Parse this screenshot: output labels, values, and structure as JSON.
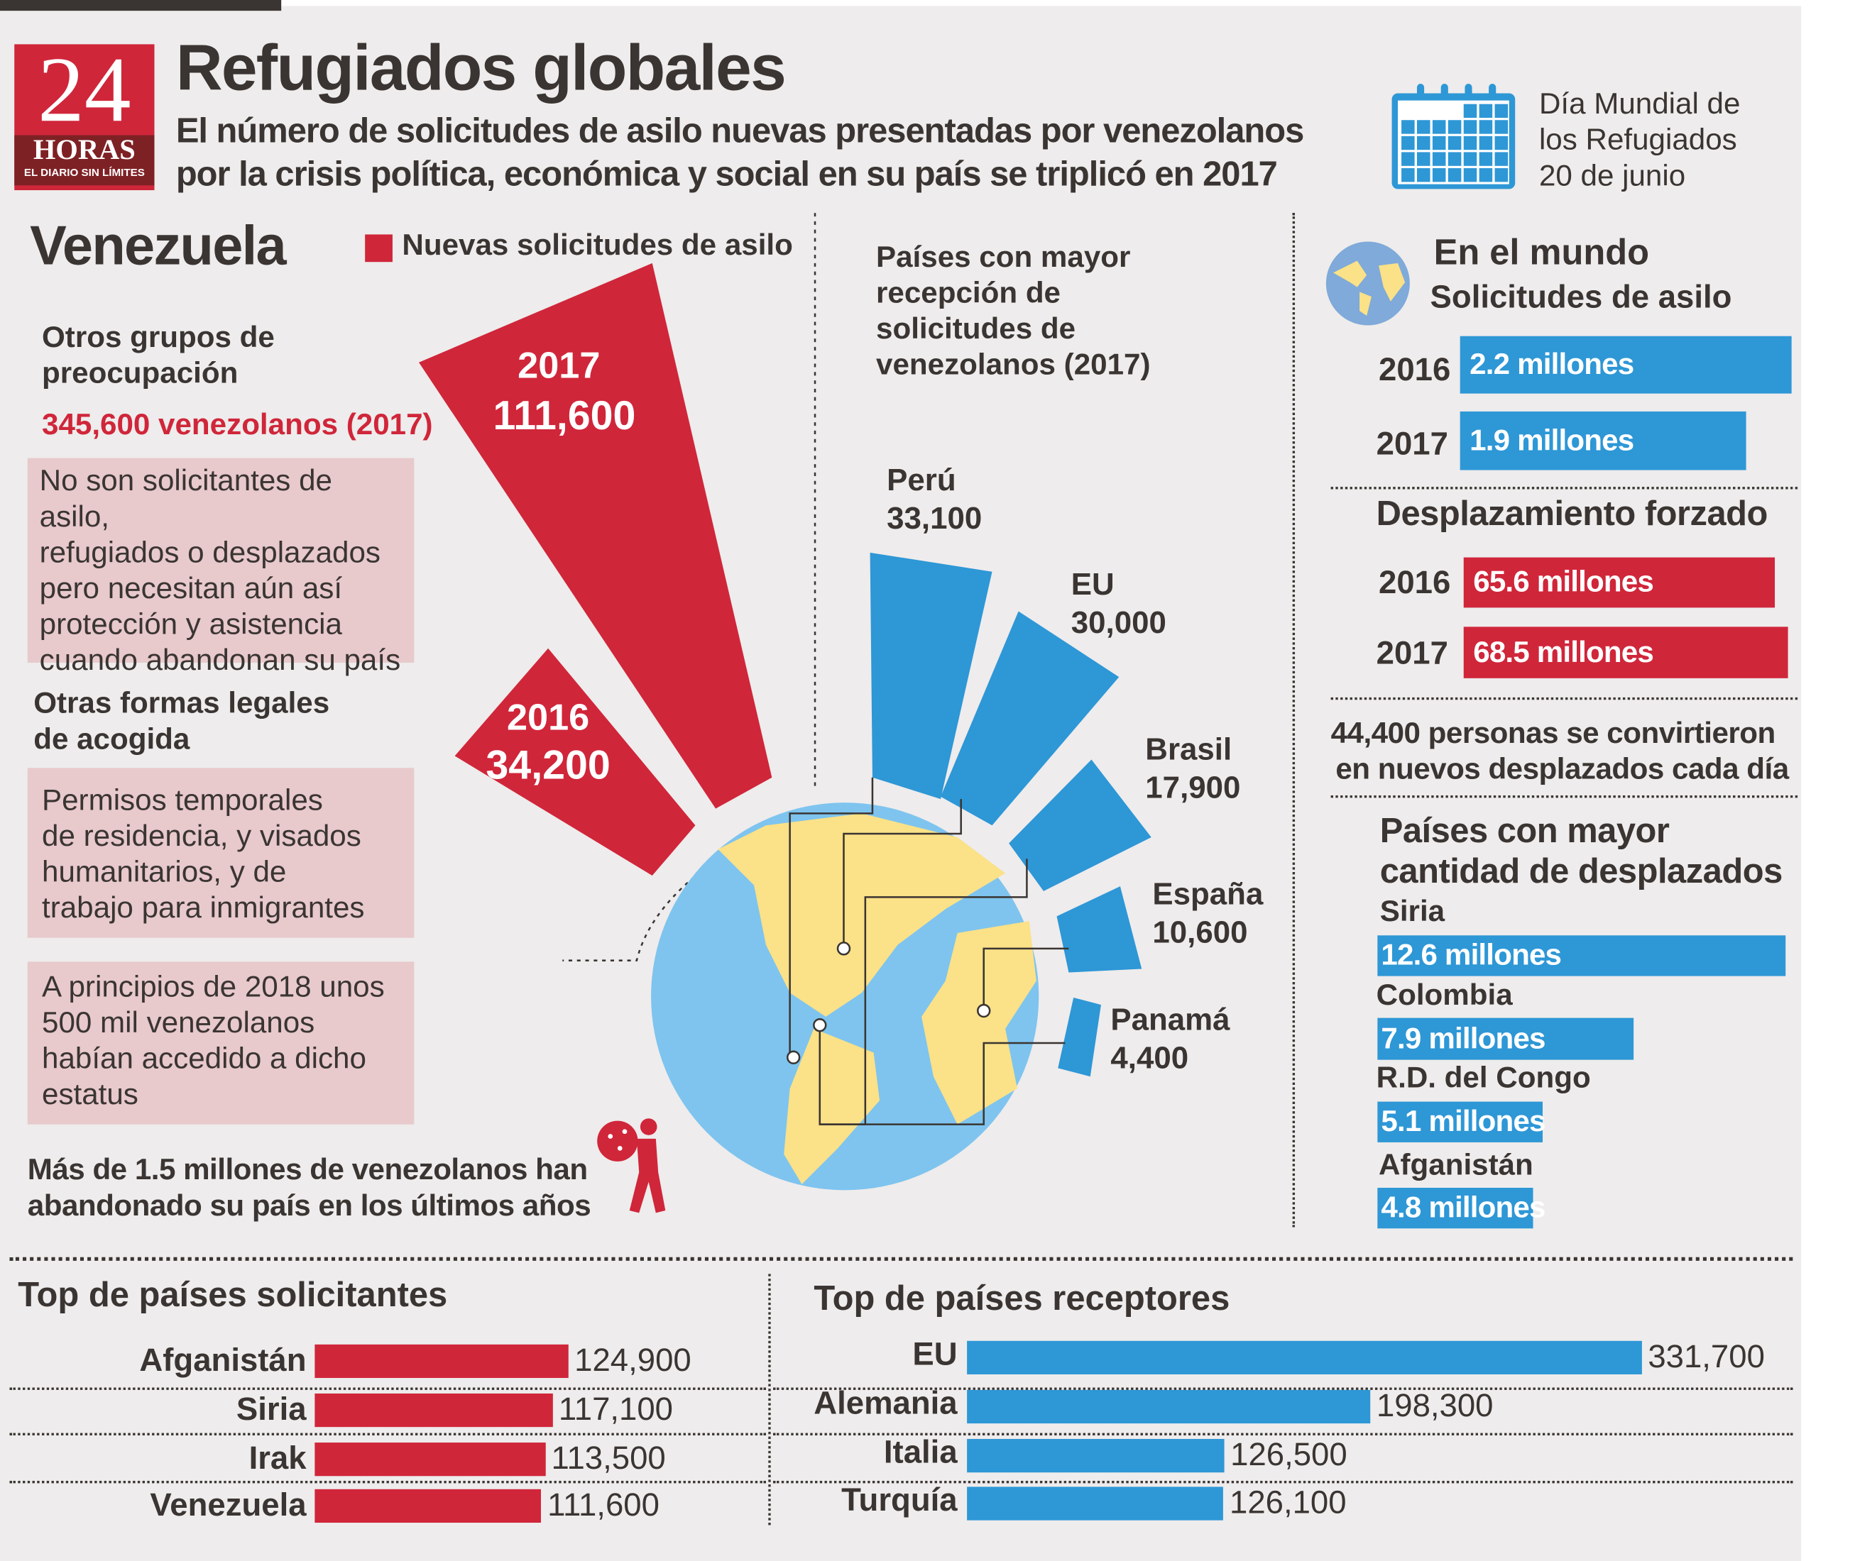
{
  "header": {
    "logo_text": "24 HORAS EL DIARIO SIN LÍMITES",
    "title": "Refugiados globales",
    "subtitle_1": "El número de solicitudes de asilo nuevas presentadas por venezolanos",
    "subtitle_2": "por la crisis política, económica y social en su país se triplicó en 2017",
    "date_1": "Día Mundial de",
    "date_2": "los Refugiados",
    "date_3": "20 de junio",
    "icon": "calendar-icon"
  },
  "colors": {
    "red": "#d0263a",
    "blue": "#2e97d6",
    "pink": "#e8c9cc",
    "background": "#eeecec",
    "text": "#3a3532",
    "land": "#fbe187",
    "ocean": "#7ec4ef"
  },
  "venezuela": {
    "title": "Venezuela",
    "legend": "Nuevas solicitudes de asilo",
    "otros_title_1": "Otros grupos de",
    "otros_title_2": "preocupación",
    "otros_value": "345,600 venezolanos (2017)",
    "box1": [
      "No son solicitantes de asilo,",
      "refugiados o desplazados",
      "pero necesitan aún así",
      "protección y asistencia",
      "cuando abandonan su país"
    ],
    "formas_title_1": "Otras formas legales",
    "formas_title_2": "de acogida",
    "box2": [
      "Permisos temporales",
      "de residencia, y visados",
      "humanitarios, y de",
      "trabajo para inmigrantes"
    ],
    "box3": [
      "A principios de 2018 unos",
      "500 mil venezolanos",
      "habían accedido a dicho",
      "estatus"
    ],
    "footer_1": "Más de 1.5 millones de venezolanos han",
    "footer_2": "abandonado su país en los últimos años",
    "receptores_title": [
      "Países con mayor",
      "recepción de",
      "solicitudes de",
      "venezolanos (2017)"
    ]
  },
  "chart_data": [
    {
      "type": "bar",
      "title": "Nuevas solicitudes de asilo",
      "categories": [
        "2016",
        "2017"
      ],
      "values": [
        34200,
        111600
      ],
      "labels": [
        "34,200",
        "111,600"
      ]
    },
    {
      "type": "bar",
      "title": "Países con mayor recepción de solicitudes de venezolanos (2017)",
      "categories": [
        "Perú",
        "EU",
        "Brasil",
        "España",
        "Panamá"
      ],
      "values": [
        33100,
        30000,
        17900,
        10600,
        4400
      ],
      "labels": [
        "33,100",
        "30,000",
        "17,900",
        "10,600",
        "4,400"
      ]
    },
    {
      "type": "bar",
      "title": "En el mundo — Solicitudes de asilo",
      "categories": [
        "2016",
        "2017"
      ],
      "values": [
        2.2,
        1.9
      ],
      "labels": [
        "2.2 millones",
        "1.9 millones"
      ]
    },
    {
      "type": "bar",
      "title": "Desplazamiento forzado",
      "categories": [
        "2016",
        "2017"
      ],
      "values": [
        65.6,
        68.5
      ],
      "labels": [
        "65.6 millones",
        "68.5 millones"
      ]
    },
    {
      "type": "bar",
      "title": "Países con mayor cantidad de desplazados",
      "categories": [
        "Siria",
        "Colombia",
        "R.D. del Congo",
        "Afganistán"
      ],
      "values": [
        12.6,
        7.9,
        5.1,
        4.8
      ],
      "labels": [
        "12.6 millones",
        "7.9 millones",
        "5.1 millones",
        "4.8 millones"
      ]
    },
    {
      "type": "bar",
      "title": "Top de países solicitantes",
      "categories": [
        "Afganistán",
        "Siria",
        "Irak",
        "Venezuela"
      ],
      "values": [
        124900,
        117100,
        113500,
        111600
      ],
      "labels": [
        "124,900",
        "117,100",
        "113,500",
        "111,600"
      ]
    },
    {
      "type": "bar",
      "title": "Top de países receptores",
      "categories": [
        "EU",
        "Alemania",
        "Italia",
        "Turquía"
      ],
      "values": [
        331700,
        198300,
        126500,
        126100
      ],
      "labels": [
        "331,700",
        "198,300",
        "126,500",
        "126,100"
      ]
    }
  ],
  "mundo": {
    "title": "En el mundo",
    "subtitle": "Solicitudes de asilo",
    "desp_title": "Desplazamiento forzado",
    "daily_1": "44,400 personas se convirtieron",
    "daily_2": "en nuevos desplazados cada día",
    "paises_title_1": "Países con mayor",
    "paises_title_2": "cantidad de desplazados"
  }
}
